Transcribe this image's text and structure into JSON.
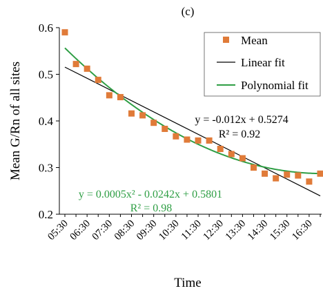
{
  "chart_data": {
    "type": "scatter",
    "title": "(c)",
    "xlabel": "Time",
    "ylabel": "Mean G/Rn of all sites",
    "ylim": [
      0.2,
      0.6
    ],
    "yticks": [
      "0.2",
      "0.3",
      "0.4",
      "0.5",
      "0.6"
    ],
    "xticks": [
      "05:30",
      "06:30",
      "07:30",
      "08:30",
      "09:30",
      "10:30",
      "11:30",
      "12:30",
      "13:30",
      "14:30",
      "15:30",
      "16:30"
    ],
    "x_count": 24,
    "grid": false,
    "legend_position": "top-right",
    "series": [
      {
        "name": "Mean",
        "kind": "points",
        "color": "#E07B39",
        "values": [
          0.59,
          0.522,
          0.512,
          0.488,
          0.455,
          0.451,
          0.416,
          0.412,
          0.396,
          0.383,
          0.367,
          0.36,
          0.358,
          0.358,
          0.34,
          0.329,
          0.32,
          0.3,
          0.287,
          0.277,
          0.285,
          0.283,
          0.27,
          0.287
        ]
      },
      {
        "name": "Linear fit",
        "kind": "line",
        "color": "#000000",
        "slope": -0.012,
        "intercept": 0.5274
      },
      {
        "name": "Polynomial fit",
        "kind": "curve",
        "color": "#2E9E44",
        "a": 0.0005,
        "b": -0.0242,
        "c": 0.5801
      }
    ],
    "annotations": {
      "linear_eq": "y = -0.012x + 0.5274",
      "linear_r2": "R² = 0.92",
      "poly_eq": "y = 0.0005x² - 0.0242x + 0.5801",
      "poly_r2": "R² = 0.98"
    }
  }
}
